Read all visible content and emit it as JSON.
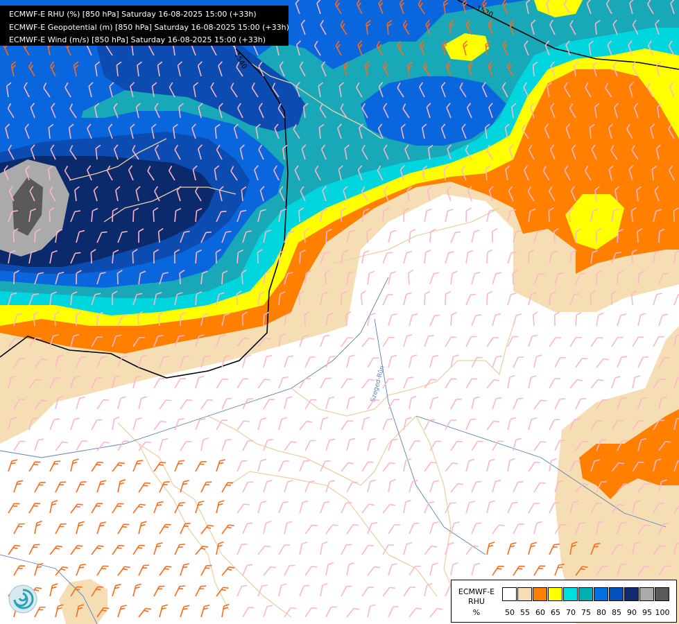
{
  "header": {
    "lines": [
      "ECMWF-E RHU (%) [850 hPa] Saturday 16-08-2025 15:00 (+33h)",
      "ECMWF-E Geopotential (m) [850 hPa] Saturday 16-08-2025 15:00 (+33h)",
      "ECMWF-E Wind (m/s) [850 hPa] Saturday 16-08-2025 15:00 (+33h)"
    ]
  },
  "contours": {
    "label_1520": "1520",
    "label_1540": "1540"
  },
  "map_labels": {
    "river": "Szeged-Rûn"
  },
  "legend": {
    "title_line1": "ECMWF-E",
    "title_line2": "RHU",
    "unit": "%",
    "ticks": [
      "50",
      "55",
      "60",
      "65",
      "70",
      "75",
      "80",
      "85",
      "90",
      "95",
      "100"
    ],
    "colors": [
      "#ffffff",
      "#f5deb3",
      "#ff8000",
      "#ffff00",
      "#00e0e0",
      "#00b0b0",
      "#0070e0",
      "#0050c0",
      "#102a6e",
      "#aaaaaa",
      "#595959"
    ]
  },
  "palette": {
    "rh_75": "#19a8b8",
    "rh_80": "#0a66dd",
    "rh_85": "#0c4bb0",
    "rh_90": "#0b2a6b",
    "wind_barb_light": "#ffb6c8",
    "wind_barb_strong": "#ff6a1a",
    "geopotential_line": "#000000",
    "border_line": "#e8d2a8",
    "river_line": "#5a7fb8"
  }
}
